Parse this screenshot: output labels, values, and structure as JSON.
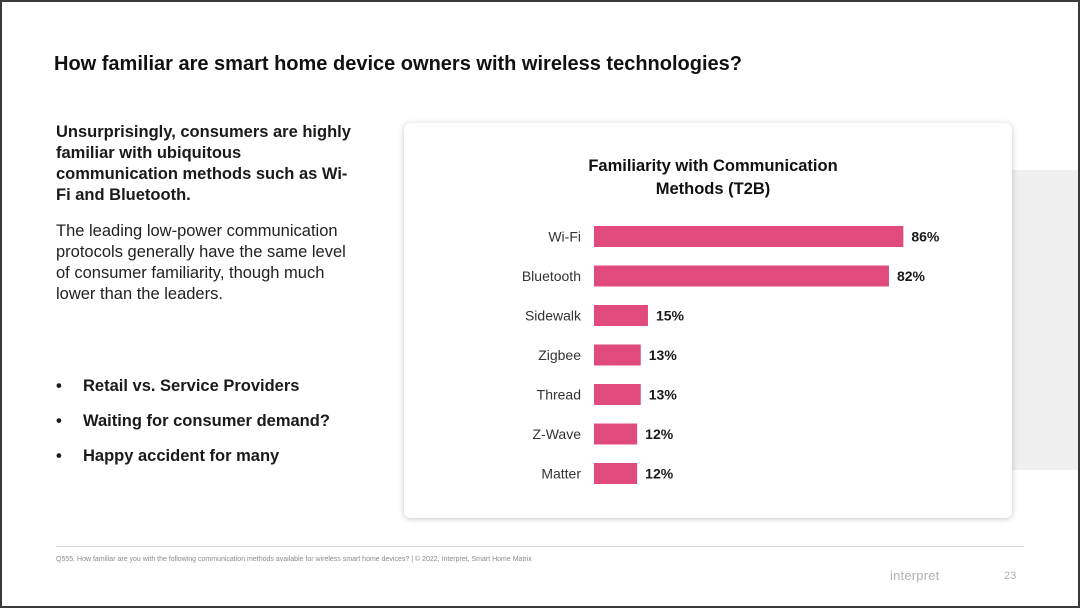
{
  "slide": {
    "title": "How familiar are smart home device owners with wireless technologies?",
    "lead": "Unsurprisingly, consumers are highly familiar with ubiquitous communication methods such as Wi-Fi and Bluetooth.",
    "body": "The leading low-power communication protocols generally have the same level of consumer familiarity, though much lower than the leaders.",
    "bullet_marker": "•",
    "bullets": [
      "Retail vs. Service Providers",
      "Waiting for consumer demand?",
      "Happy accident for many"
    ],
    "footnote": "Q555. How familiar are you with the following communication methods available for wireless smart home devices? | © 2022, Interpret, Smart Home Matrix",
    "brand": "interpret",
    "page_number": "23"
  },
  "colors": {
    "bar": "#e04a7c",
    "text": "#1a1a1a"
  },
  "chart_data": {
    "type": "bar",
    "orientation": "horizontal",
    "title_lines": [
      "Familiarity with Communication",
      "Methods (T2B)"
    ],
    "categories": [
      "Wi-Fi",
      "Bluetooth",
      "Sidewalk",
      "Zigbee",
      "Thread",
      "Z-Wave",
      "Matter"
    ],
    "values": [
      86,
      82,
      15,
      13,
      13,
      12,
      12
    ],
    "value_suffix": "%",
    "xlim": [
      0,
      100
    ],
    "grid": false,
    "legend": "none"
  }
}
